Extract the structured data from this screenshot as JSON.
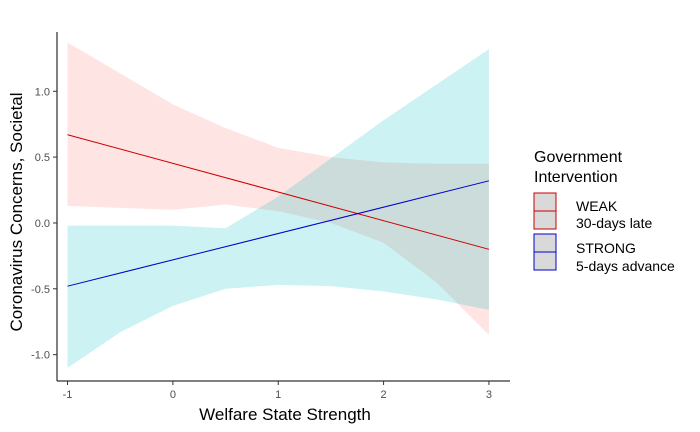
{
  "chart_data": {
    "type": "line",
    "title": "",
    "xlabel": "Welfare State Strength",
    "ylabel": "Coronavirus Concerns, Societal",
    "xlim": [
      -1.1,
      3.2
    ],
    "ylim": [
      -1.2,
      1.45
    ],
    "x_ticks": [
      -1,
      0,
      1,
      2,
      3
    ],
    "x_tick_labels": [
      "-1",
      "0",
      "1",
      "2",
      "3"
    ],
    "y_ticks": [
      -1.0,
      -0.5,
      0.0,
      0.5,
      1.0
    ],
    "y_tick_labels": [
      "-1.0",
      "-0.5",
      "0.0",
      "0.5",
      "1.0"
    ],
    "grid": false,
    "legend": {
      "title_lines": [
        "Government",
        "Intervention"
      ],
      "placement": "right"
    },
    "series": [
      {
        "name_lines": [
          "WEAK",
          "30-days late"
        ],
        "line_color": "#cc0000",
        "band_color": "#f8766d",
        "x": [
          -1,
          3
        ],
        "y": [
          0.67,
          -0.2
        ],
        "band_x": [
          -1,
          0,
          0.5,
          1,
          1.5,
          2,
          2.5,
          3
        ],
        "band_lower": [
          0.13,
          0.1,
          0.14,
          0.09,
          0.0,
          -0.15,
          -0.45,
          -0.85
        ],
        "band_upper": [
          1.37,
          0.9,
          0.72,
          0.57,
          0.5,
          0.46,
          0.45,
          0.45
        ]
      },
      {
        "name_lines": [
          "STRONG",
          "5-days advance"
        ],
        "line_color": "#0000cc",
        "band_color": "#00bfc4",
        "x": [
          -1,
          3
        ],
        "y": [
          -0.48,
          0.32
        ],
        "band_x": [
          -1,
          -0.5,
          0,
          0.5,
          1,
          1.5,
          2,
          2.5,
          3
        ],
        "band_lower": [
          -1.1,
          -0.83,
          -0.63,
          -0.5,
          -0.47,
          -0.48,
          -0.52,
          -0.58,
          -0.66
        ],
        "band_upper": [
          -0.02,
          -0.02,
          -0.02,
          -0.04,
          0.2,
          0.49,
          0.78,
          1.05,
          1.32
        ]
      }
    ]
  }
}
